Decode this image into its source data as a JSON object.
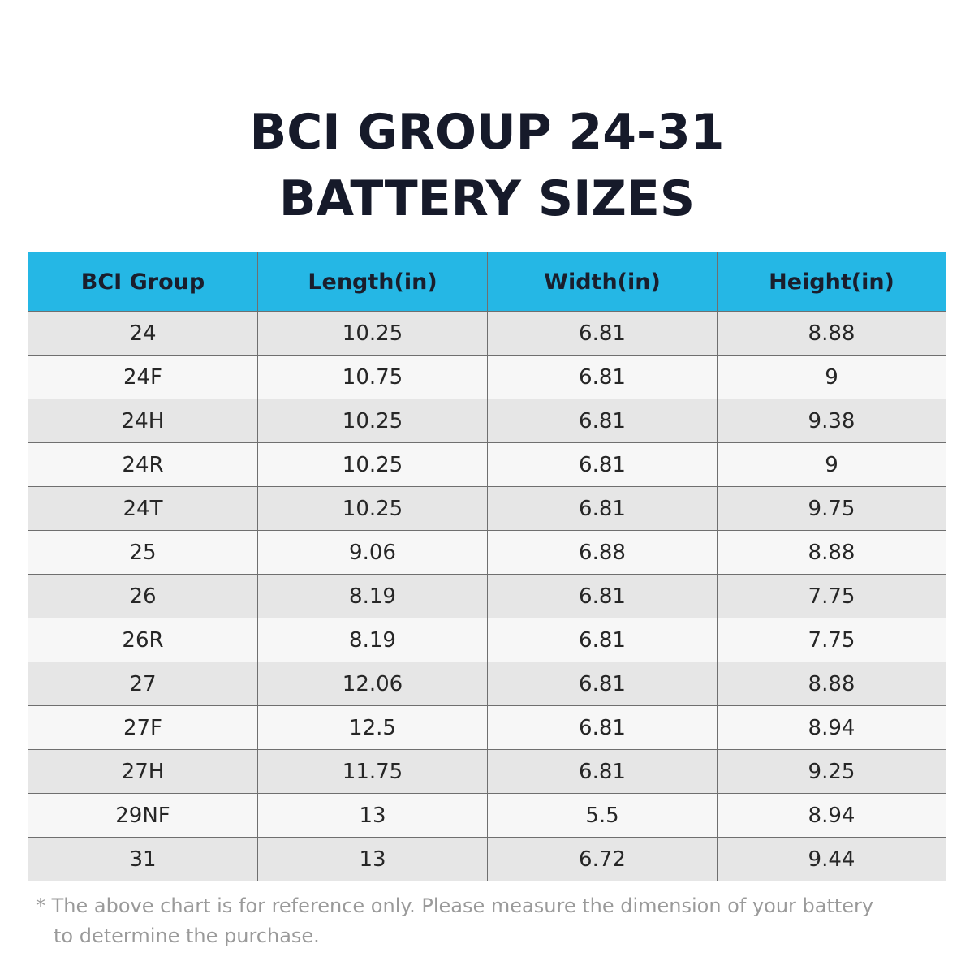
{
  "title": {
    "line1": "BCI GROUP 24-31",
    "line2": "BATTERY SIZES"
  },
  "table": {
    "headers": [
      "BCI Group",
      "Length(in)",
      "Width(in)",
      "Height(in)"
    ],
    "rows": [
      [
        "24",
        "10.25",
        "6.81",
        "8.88"
      ],
      [
        "24F",
        "10.75",
        "6.81",
        "9"
      ],
      [
        "24H",
        "10.25",
        "6.81",
        "9.38"
      ],
      [
        "24R",
        "10.25",
        "6.81",
        "9"
      ],
      [
        "24T",
        "10.25",
        "6.81",
        "9.75"
      ],
      [
        "25",
        "9.06",
        "6.88",
        "8.88"
      ],
      [
        "26",
        "8.19",
        "6.81",
        "7.75"
      ],
      [
        "26R",
        "8.19",
        "6.81",
        "7.75"
      ],
      [
        "27",
        "12.06",
        "6.81",
        "8.88"
      ],
      [
        "27F",
        "12.5",
        "6.81",
        "8.94"
      ],
      [
        "27H",
        "11.75",
        "6.81",
        "9.25"
      ],
      [
        "29NF",
        "13",
        "5.5",
        "8.94"
      ],
      [
        "31",
        "13",
        "6.72",
        "9.44"
      ]
    ]
  },
  "note": {
    "line1": "* The above chart is for reference only. Please measure the dimension of your battery",
    "line2": "to determine the purchase."
  },
  "colors": {
    "header_background": "#25b7e5",
    "title_text": "#161a2a",
    "row_odd": "#e6e6e6",
    "row_even": "#f7f7f7",
    "note_text": "#9a9a9a"
  }
}
